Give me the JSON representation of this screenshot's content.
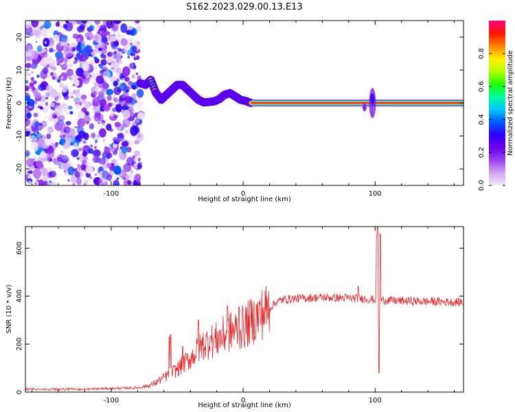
{
  "title": "S162.2023.029.00.13.E13",
  "colors": {
    "line": "#e8282a",
    "colormap": [
      "#f2e6fb",
      "#cfa6f2",
      "#9a3ff0",
      "#6a00e8",
      "#2a00ff",
      "#0060ff",
      "#00c8ff",
      "#00ff9c",
      "#20ff00",
      "#b8ff00",
      "#ffee00",
      "#ff8000",
      "#ff1500",
      "#ff0080"
    ]
  },
  "chart_data": [
    {
      "type": "heatmap",
      "xlabel": "Height of straight line (km)",
      "ylabel": "Frequency (Hz)",
      "xlim": [
        -165,
        167
      ],
      "ylim": [
        -25,
        25
      ],
      "xticks": [
        -100,
        0,
        100
      ],
      "yticks": [
        -20,
        -10,
        0,
        10,
        20
      ],
      "colorbar": {
        "label": "Normalized spectral amplitude",
        "range": [
          0,
          1
        ],
        "ticks": [
          0.0,
          0.2,
          0.4,
          0.6,
          0.8
        ]
      },
      "ridge": {
        "x": [
          -78,
          -74,
          -70,
          -66,
          -62,
          -58,
          -54,
          -50,
          -46,
          -42,
          -38,
          -34,
          -30,
          -26,
          -22,
          -18,
          -14,
          -10,
          -6,
          -2,
          2,
          6,
          20,
          60,
          100,
          140,
          167
        ],
        "y": [
          6,
          5.5,
          7,
          3,
          1,
          2.5,
          4,
          5.5,
          5.5,
          4,
          2.5,
          1,
          0.2,
          0.3,
          0.5,
          1.2,
          2.5,
          3,
          2,
          1,
          0.6,
          0,
          0,
          0,
          0,
          0,
          0
        ]
      }
    },
    {
      "type": "line",
      "xlabel": "Height of straight line (km)",
      "ylabel": "SNR (10 * v/v)",
      "xlim": [
        -165,
        167
      ],
      "ylim": [
        0,
        690
      ],
      "xticks": [
        -100,
        0,
        100
      ],
      "yticks": [
        0,
        200,
        400,
        600
      ],
      "trend": {
        "x": [
          -165,
          -120,
          -80,
          -70,
          -60,
          -50,
          -40,
          -30,
          -20,
          -10,
          0,
          10,
          20,
          25,
          30,
          40,
          60,
          90,
          100,
          120,
          140,
          167
        ],
        "y": [
          12,
          12,
          18,
          28,
          60,
          95,
          140,
          200,
          220,
          250,
          270,
          310,
          350,
          375,
          385,
          390,
          395,
          390,
          385,
          380,
          378,
          375
        ]
      },
      "spikes": [
        {
          "x": -56,
          "y": 230
        },
        {
          "x": -55,
          "y": 240
        },
        {
          "x": -46,
          "y": 190
        },
        {
          "x": -34,
          "y": 300
        },
        {
          "x": -25,
          "y": 230
        },
        {
          "x": -12,
          "y": 360
        },
        {
          "x": -3,
          "y": 355
        },
        {
          "x": 87,
          "y": 440
        },
        {
          "x": 101,
          "y": 650
        },
        {
          "x": 102,
          "y": 690
        },
        {
          "x": 103,
          "y": 80
        },
        {
          "x": 104,
          "y": 660
        }
      ]
    }
  ]
}
